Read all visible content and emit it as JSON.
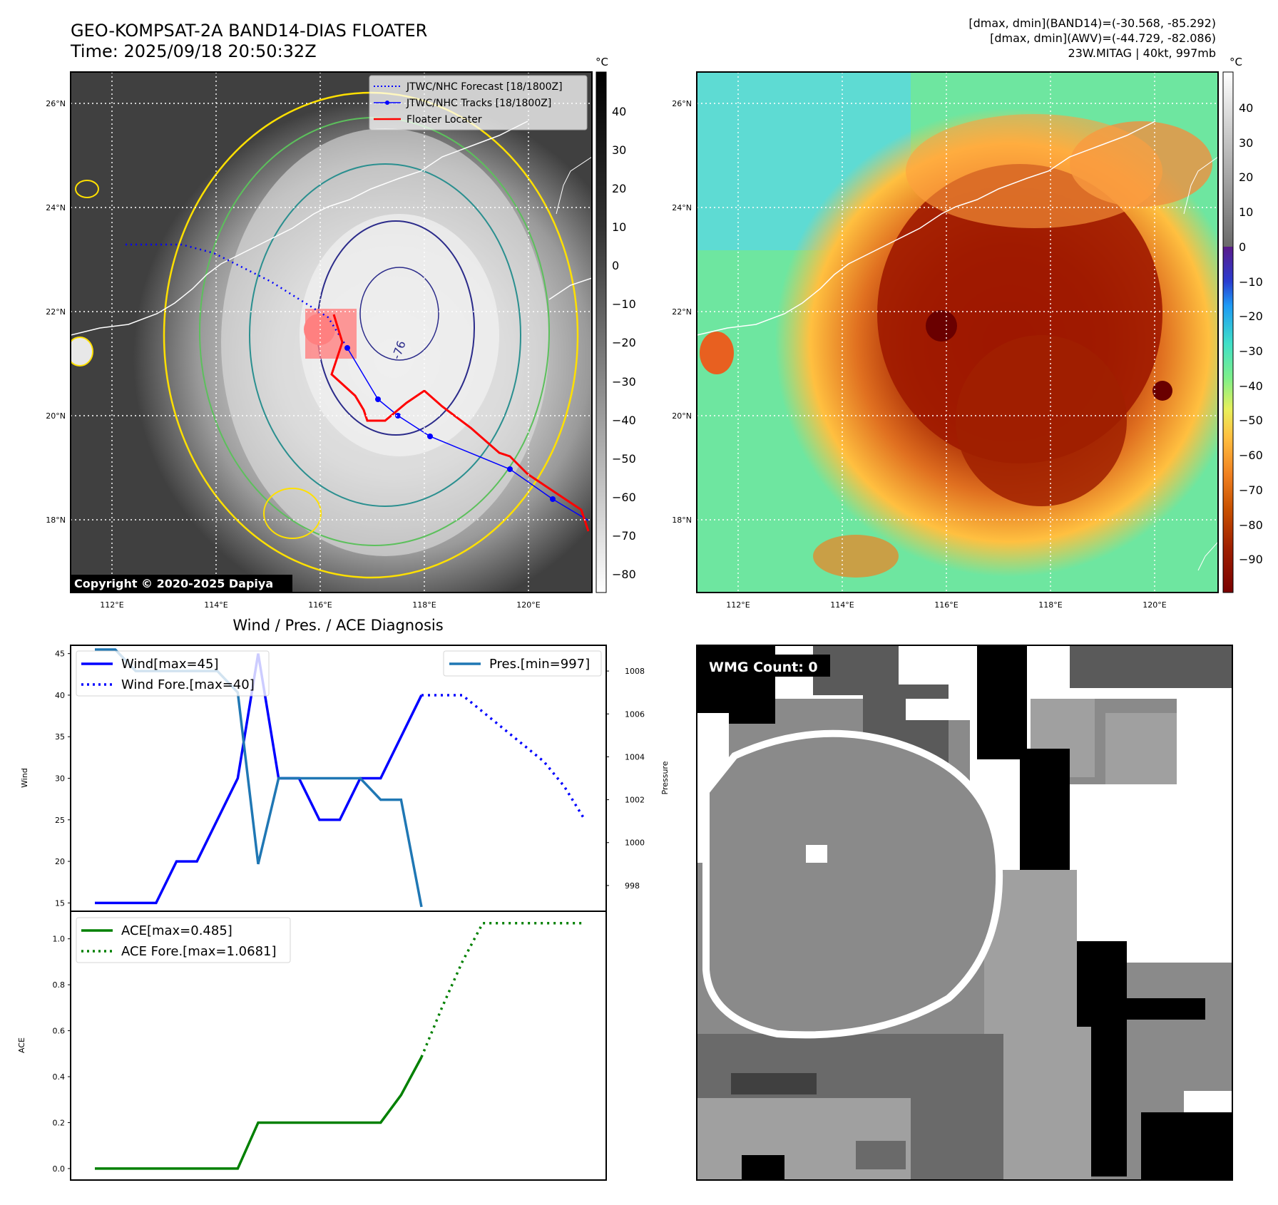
{
  "header": {
    "title_line1": "GEO-KOMPSAT-2A BAND14-DIAS FLOATER",
    "title_line2": "Time: 2025/09/18 20:50:32Z",
    "info_line1": "[dmax, dmin](BAND14)=(-30.568, -85.292)",
    "info_line2": "[dmax, dmin](AWV)=(-44.729, -82.086)",
    "info_line3": "23W.MITAG | 40kt, 997mb"
  },
  "map": {
    "lat_labels": [
      "26°N",
      "24°N",
      "22°N",
      "20°N",
      "18°N"
    ],
    "lon_labels": [
      "112°E",
      "114°E",
      "116°E",
      "118°E",
      "120°E"
    ],
    "legend": [
      "JTWC/NHC Forecast [18/1800Z]",
      "JTWC/NHC Tracks [18/1800Z]",
      "Floater Locater"
    ],
    "copyright": "Copyright © 2020-2025 Dapiya",
    "contour_label": "-76",
    "colors": {
      "forecast": "#0000ff",
      "track": "#0000ff",
      "locater": "#ff0000",
      "contour_yellow": "#ffe000",
      "contour_green": "#5cc05c",
      "contour_teal": "#2a8f8f",
      "contour_navy": "#2b2b8a"
    }
  },
  "colorbar1": {
    "unit": "°C",
    "ticks": [
      "40",
      "30",
      "20",
      "10",
      "0",
      "−10",
      "−20",
      "−30",
      "−40",
      "−50",
      "−60",
      "−70",
      "−80"
    ]
  },
  "colorbar2": {
    "unit": "°C",
    "ticks": [
      "40",
      "30",
      "20",
      "10",
      "0",
      "−10",
      "−20",
      "−30",
      "−40",
      "−50",
      "−60",
      "−70",
      "−80",
      "−90"
    ]
  },
  "diag": {
    "title": "Wind / Pres. / ACE Diagnosis",
    "wind_ylabel": "Wind",
    "pres_ylabel": "Pressure",
    "ace_ylabel": "ACE",
    "legend_wind": "Wind[max=45]",
    "legend_wind_fore": "Wind Fore.[max=40]",
    "legend_pres": "Pres.[min=997]",
    "legend_ace": "ACE[max=0.485]",
    "legend_ace_fore": "ACE Fore.[max=1.0681]",
    "wmg": "WMG Count: 0"
  },
  "chart_data": [
    {
      "type": "line",
      "title": "Wind / Pres. / ACE Diagnosis",
      "ylabel": "Wind",
      "ylim": [
        14,
        46
      ],
      "yticks": [
        15,
        20,
        25,
        30,
        35,
        40,
        45
      ],
      "x": [
        0,
        1,
        2,
        3,
        4,
        5,
        6,
        7,
        8,
        9,
        10,
        11,
        12,
        13,
        14,
        15,
        16,
        17,
        18,
        19,
        20,
        21,
        22,
        23,
        24
      ],
      "series": [
        {
          "name": "Wind[max=45]",
          "color": "#0000ff",
          "style": "solid",
          "x": [
            0,
            1,
            2,
            3,
            4,
            5,
            6,
            7,
            8,
            9,
            10,
            11,
            12,
            13,
            14,
            15,
            16
          ],
          "values": [
            15,
            15,
            15,
            15,
            20,
            20,
            25,
            30,
            45,
            30,
            30,
            25,
            25,
            30,
            30,
            35,
            40
          ]
        },
        {
          "name": "Wind Fore.[max=40]",
          "color": "#0000ff",
          "style": "dotted",
          "x": [
            16,
            17,
            18,
            19,
            20,
            21,
            22,
            23,
            24
          ],
          "values": [
            40,
            40,
            40,
            38,
            36,
            34,
            32,
            29,
            25
          ]
        }
      ]
    },
    {
      "type": "line",
      "ylabel": "Pressure",
      "ylim": [
        996.8,
        1009.2
      ],
      "yticks": [
        998,
        1000,
        1002,
        1004,
        1006,
        1008
      ],
      "series": [
        {
          "name": "Pres.[min=997]",
          "color": "#1f77b4",
          "style": "solid",
          "x": [
            0,
            1,
            2,
            3,
            4,
            5,
            6,
            7,
            8,
            9,
            10,
            11,
            12,
            13,
            14,
            15,
            16
          ],
          "values": [
            1009,
            1009,
            1008,
            1008,
            1008,
            1008,
            1008,
            1007,
            999,
            1003,
            1003,
            1003,
            1003,
            1003,
            1002,
            1002,
            997
          ]
        }
      ]
    },
    {
      "type": "line",
      "ylabel": "ACE",
      "ylim": [
        -0.05,
        1.12
      ],
      "yticks": [
        0.0,
        0.2,
        0.4,
        0.6,
        0.8,
        1.0
      ],
      "series": [
        {
          "name": "ACE[max=0.485]",
          "color": "#008000",
          "style": "solid",
          "x": [
            0,
            1,
            2,
            3,
            4,
            5,
            6,
            7,
            8,
            9,
            10,
            11,
            12,
            13,
            14,
            15,
            16
          ],
          "values": [
            0,
            0,
            0,
            0,
            0,
            0,
            0,
            0,
            0.2,
            0.2,
            0.2,
            0.2,
            0.2,
            0.2,
            0.2,
            0.32,
            0.485
          ]
        },
        {
          "name": "ACE Fore.[max=1.0681]",
          "color": "#008000",
          "style": "dotted",
          "x": [
            16,
            17,
            18,
            19,
            20,
            21,
            22,
            23,
            24
          ],
          "values": [
            0.485,
            0.7,
            0.9,
            1.068,
            1.068,
            1.068,
            1.068,
            1.068,
            1.068
          ]
        }
      ]
    }
  ]
}
